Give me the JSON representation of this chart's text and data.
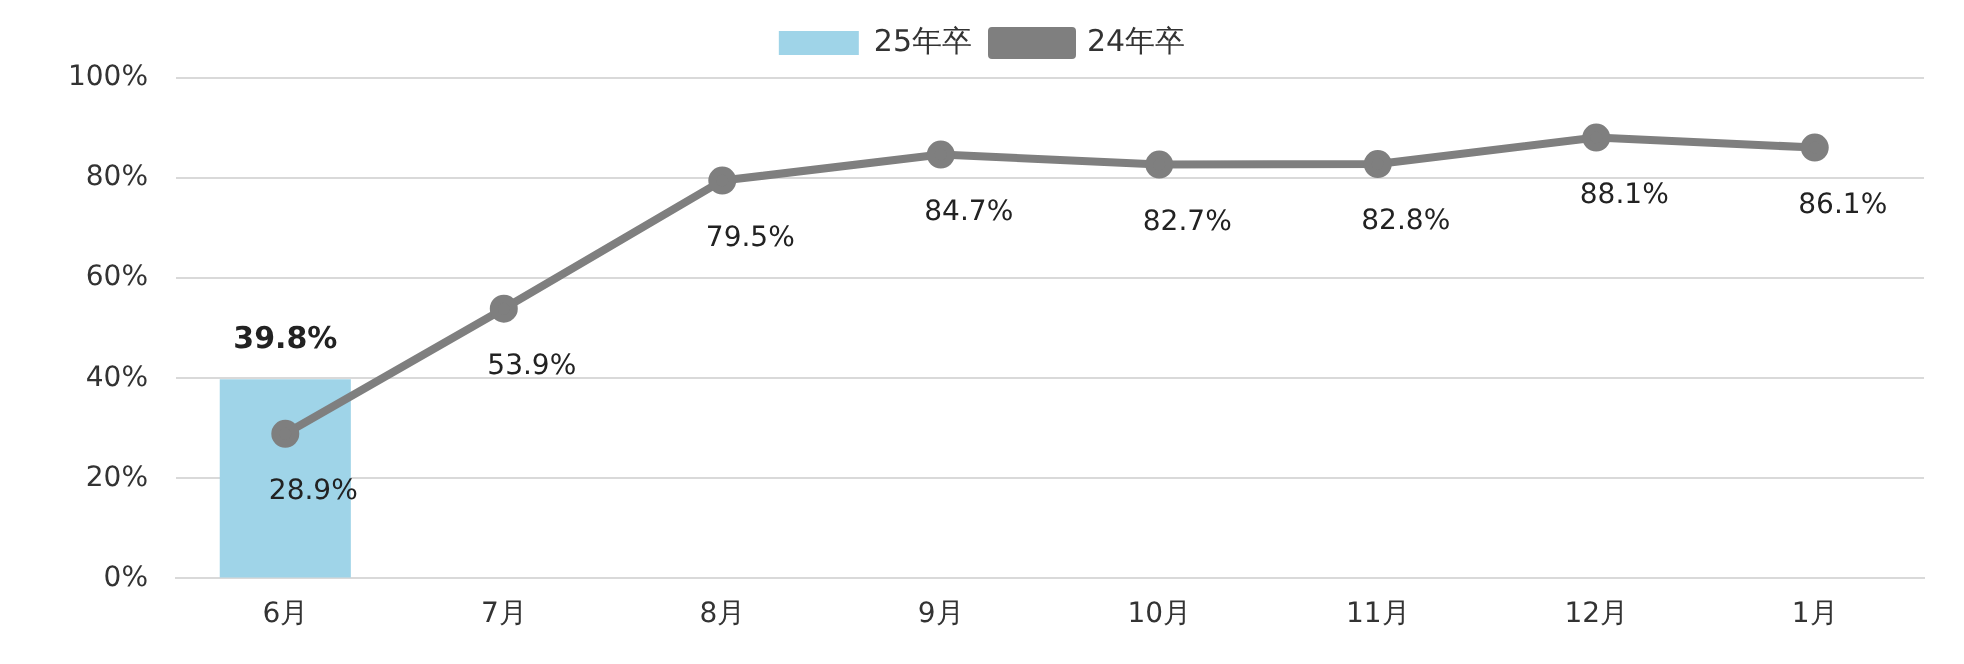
{
  "chart_data": {
    "type": "line",
    "categories": [
      "6月",
      "7月",
      "8月",
      "9月",
      "10月",
      "11月",
      "12月",
      "1月"
    ],
    "series": [
      {
        "name": "25年卒",
        "type": "bar",
        "color": "#9fd4e8",
        "values": [
          39.8,
          null,
          null,
          null,
          null,
          null,
          null,
          null
        ],
        "value_labels": [
          "39.8%",
          null,
          null,
          null,
          null,
          null,
          null,
          null
        ]
      },
      {
        "name": "24年卒",
        "color": "#7f7f7f",
        "values": [
          28.9,
          53.9,
          79.5,
          84.7,
          82.7,
          82.8,
          88.1,
          86.1
        ],
        "value_labels": [
          "28.9%",
          "53.9%",
          "79.5%",
          "84.7%",
          "82.7%",
          "82.8%",
          "88.1%",
          "86.1%"
        ]
      }
    ],
    "ylim": [
      0,
      100
    ],
    "yticks": [
      {
        "value": 0,
        "label": "0%"
      },
      {
        "value": 20,
        "label": "20%"
      },
      {
        "value": 40,
        "label": "40%"
      },
      {
        "value": 60,
        "label": "60%"
      },
      {
        "value": 80,
        "label": "80%"
      },
      {
        "value": 100,
        "label": "100%"
      }
    ],
    "grid": "y",
    "legend": "top",
    "marker": "circle",
    "line_style": "solid"
  }
}
